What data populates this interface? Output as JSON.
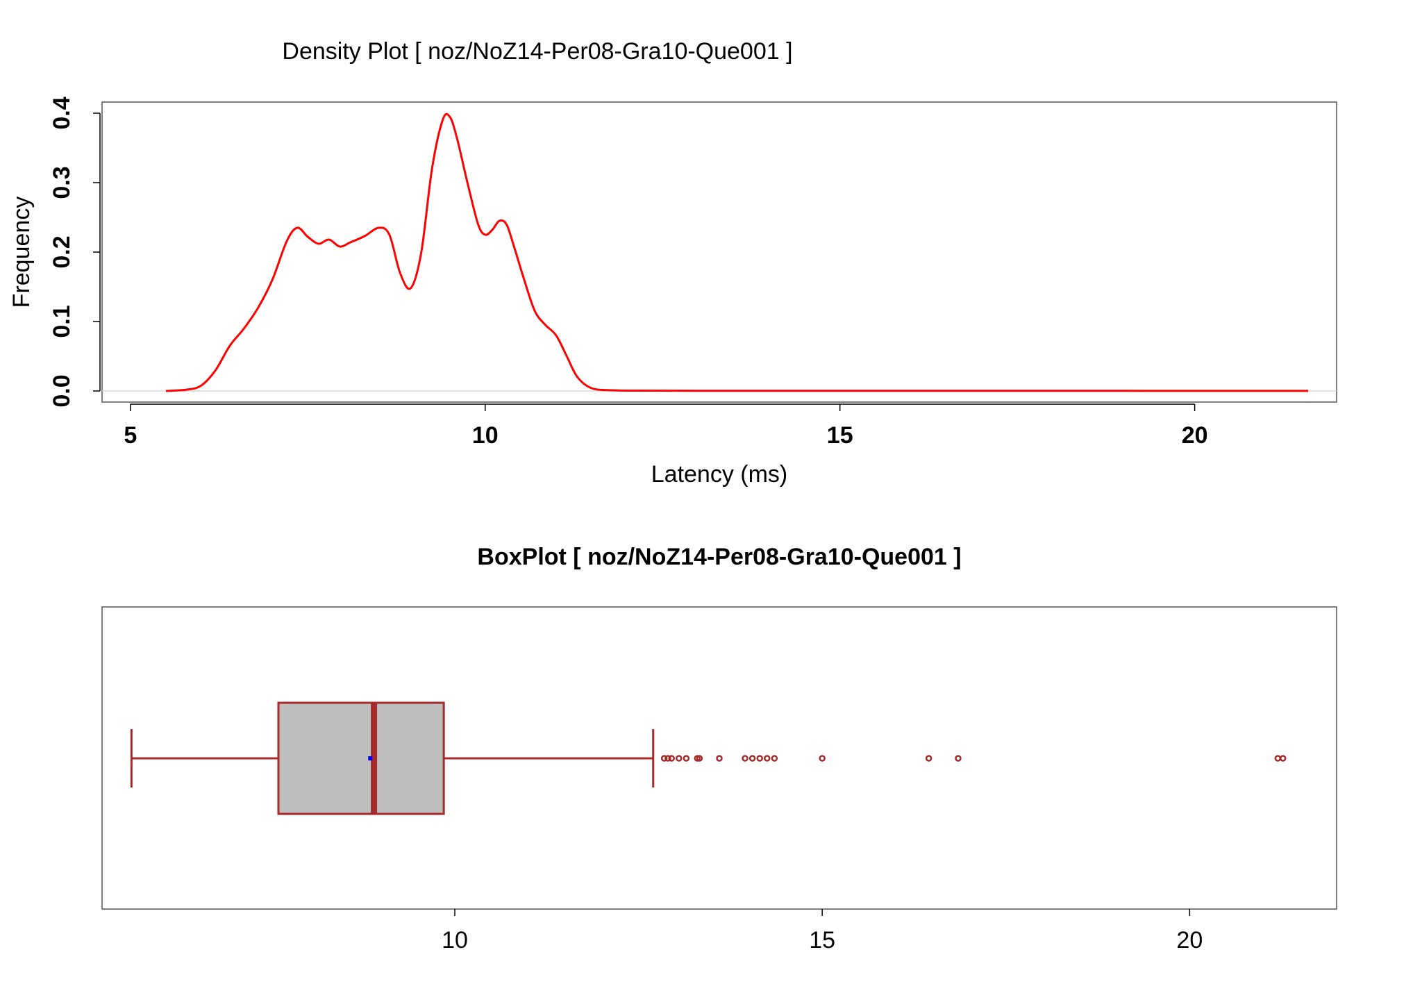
{
  "colors": {
    "density_line": "#ff0000",
    "box_border": "#a52a2a",
    "box_fill": "#bebebe",
    "mean_marker": "#0000ff",
    "zero_line": "#d9d9d9",
    "frame": "#555555"
  },
  "chart_data": [
    {
      "type": "line",
      "title": "Density Plot [ noz/NoZ14-Per08-Gra10-Que001 ]",
      "xlabel": "Latency (ms)",
      "ylabel": "Frequency",
      "xlim": [
        4.6,
        22.0
      ],
      "ylim": [
        -0.016,
        0.416
      ],
      "x_ticks": [
        5,
        10,
        15,
        20
      ],
      "x_tick_labels": [
        "5",
        "10",
        "15",
        "20"
      ],
      "y_ticks": [
        0.0,
        0.1,
        0.2,
        0.3,
        0.4
      ],
      "y_tick_labels": [
        "0.0",
        "0.1",
        "0.2",
        "0.3",
        "0.4"
      ],
      "grid": false,
      "series": [
        {
          "x": [
            5.5,
            5.8,
            6.0,
            6.2,
            6.4,
            6.6,
            6.8,
            7.0,
            7.2,
            7.35,
            7.5,
            7.65,
            7.8,
            7.95,
            8.1,
            8.3,
            8.5,
            8.65,
            8.8,
            8.95,
            9.1,
            9.25,
            9.4,
            9.5,
            9.6,
            9.75,
            9.9,
            10.0,
            10.1,
            10.2,
            10.3,
            10.4,
            10.55,
            10.7,
            10.85,
            11.0,
            11.15,
            11.3,
            11.5,
            11.8,
            12.2,
            13,
            14,
            15,
            16,
            17,
            18,
            19,
            20,
            21,
            21.6
          ],
          "y": [
            0.0,
            0.002,
            0.008,
            0.03,
            0.065,
            0.09,
            0.12,
            0.16,
            0.215,
            0.235,
            0.222,
            0.212,
            0.218,
            0.208,
            0.214,
            0.223,
            0.235,
            0.225,
            0.17,
            0.148,
            0.2,
            0.32,
            0.39,
            0.395,
            0.365,
            0.3,
            0.24,
            0.225,
            0.232,
            0.245,
            0.24,
            0.21,
            0.16,
            0.115,
            0.095,
            0.08,
            0.05,
            0.02,
            0.004,
            0.001,
            0.0005,
            0.0003,
            0.0002,
            0.0002,
            0.0002,
            0.0002,
            0.0002,
            0.0002,
            0.0001,
            0.0001,
            0.0001
          ]
        }
      ]
    },
    {
      "type": "box",
      "title": "BoxPlot [ noz/NoZ14-Per08-Gra10-Que001 ]",
      "xlim": [
        5.2,
        22.0
      ],
      "x_ticks": [
        10,
        15,
        20
      ],
      "x_tick_labels": [
        "10",
        "15",
        "20"
      ],
      "grid": false,
      "whisker_low": 5.6,
      "q1": 7.6,
      "median": 8.9,
      "q3": 9.85,
      "whisker_high": 12.7,
      "mean": 8.85,
      "outliers": [
        12.85,
        12.9,
        12.95,
        13.05,
        13.15,
        13.3,
        13.33,
        13.6,
        13.95,
        14.05,
        14.15,
        14.25,
        14.35,
        15.0,
        16.45,
        16.85,
        21.2,
        21.27
      ]
    }
  ]
}
